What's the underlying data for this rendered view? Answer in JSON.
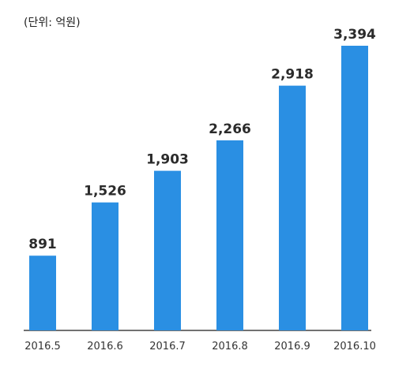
{
  "chart_data": {
    "type": "bar",
    "unit_label": "(단위: 억원)",
    "categories": [
      "2016.5",
      "2016.6",
      "2016.7",
      "2016.8",
      "2016.9",
      "2016.10"
    ],
    "values": [
      891,
      1526,
      1903,
      2266,
      2918,
      3394
    ],
    "value_labels": [
      "891",
      "1,526",
      "1,903",
      "2,266",
      "2,918",
      "3,394"
    ],
    "ylim": [
      0,
      3394
    ],
    "grid": false,
    "legend": "none",
    "bar_color": "#2a8fe3",
    "axis_color": "#444444"
  }
}
